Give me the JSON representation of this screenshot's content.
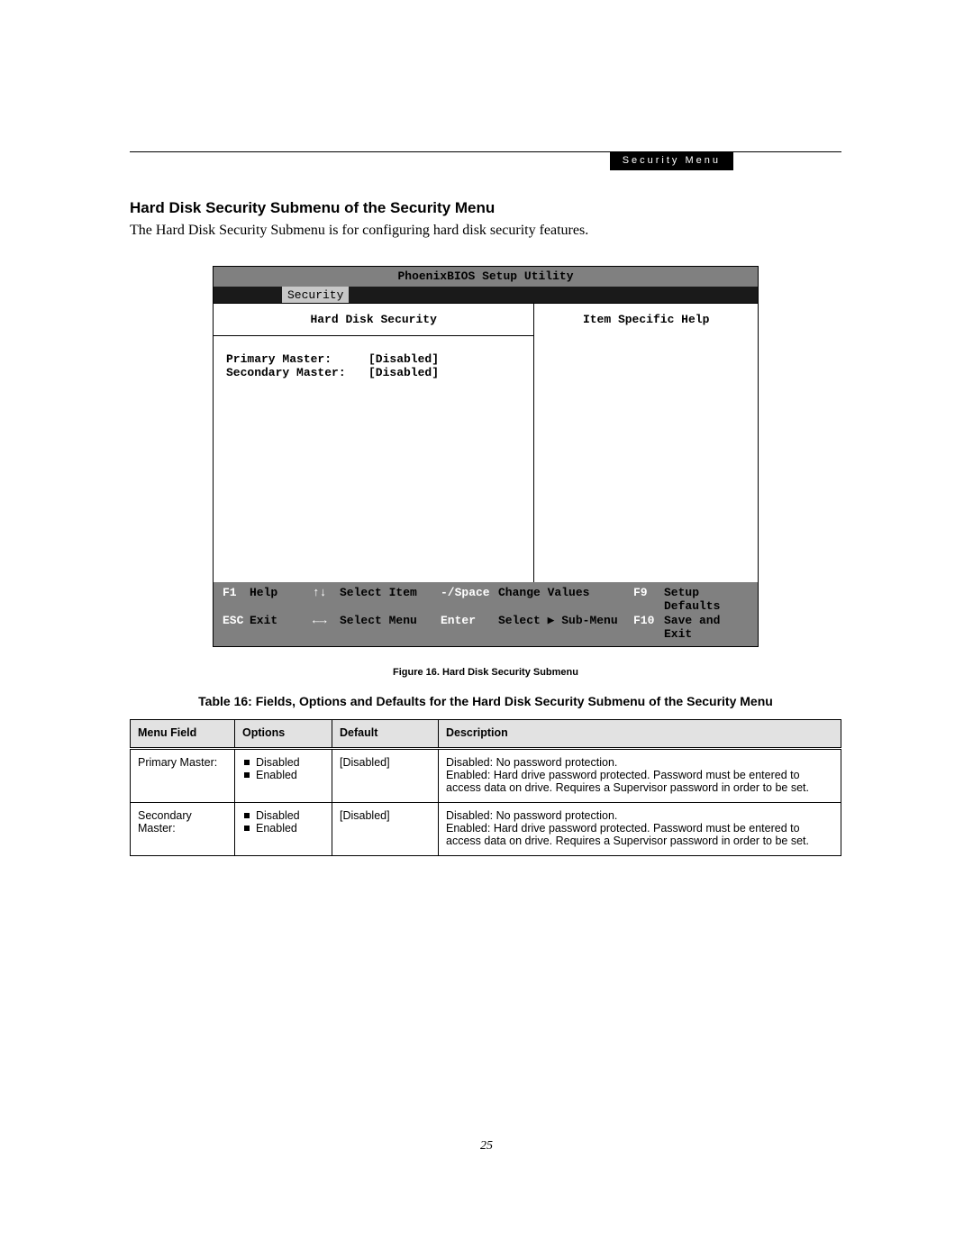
{
  "header": {
    "banner": "Security Menu"
  },
  "heading": "Hard Disk Security Submenu of the Security Menu",
  "intro": "The Hard Disk Security Submenu is for configuring hard disk security features.",
  "bios": {
    "title": "PhoenixBIOS Setup Utility",
    "tab": "Security",
    "left_title": "Hard Disk Security",
    "right_title": "Item Specific Help",
    "items": [
      {
        "label": "Primary Master:",
        "value": "[Disabled]"
      },
      {
        "label": "Secondary Master:",
        "value": "[Disabled]"
      }
    ],
    "footer": {
      "r1": {
        "k1": "F1",
        "l1": "Help",
        "k2": "↑↓",
        "l2": "Select Item",
        "k3": "-/Space",
        "l3": "Change Values",
        "k4": "F9",
        "l4": "Setup Defaults"
      },
      "r2": {
        "k1": "ESC",
        "l1": "Exit",
        "k2": "←→",
        "l2": "Select Menu",
        "k3": "Enter",
        "l3": "Select ▶ Sub-Menu",
        "k4": "F10",
        "l4": "Save and Exit"
      }
    }
  },
  "figure_caption": "Figure 16.   Hard Disk Security Submenu",
  "table_title": "Table 16: Fields, Options and Defaults for the Hard Disk Security Submenu of the Security Menu",
  "table": {
    "columns": [
      "Menu Field",
      "Options",
      "Default",
      "Description"
    ],
    "rows": [
      {
        "field": "Primary Master:",
        "options": [
          "Disabled",
          "Enabled"
        ],
        "default": "[Disabled]",
        "description": "Disabled: No password protection.\nEnabled: Hard drive password protected. Password must be entered to access data on drive. Requires a Supervisor password in order to be set."
      },
      {
        "field": "Secondary Master:",
        "options": [
          "Disabled",
          "Enabled"
        ],
        "default": "[Disabled]",
        "description": "Disabled: No password protection.\nEnabled: Hard drive password protected. Password must be entered to access data on drive. Requires a Supervisor password in order to be set."
      }
    ]
  },
  "page_number": "25",
  "colors": {
    "banner_bg": "#000000",
    "banner_fg": "#ffffff",
    "bios_title_bg": "#808080",
    "bios_tabbar_bg": "#1a1a1a",
    "bios_tab_active_bg": "#c8c8c8",
    "table_header_bg": "#e2e2e2"
  }
}
